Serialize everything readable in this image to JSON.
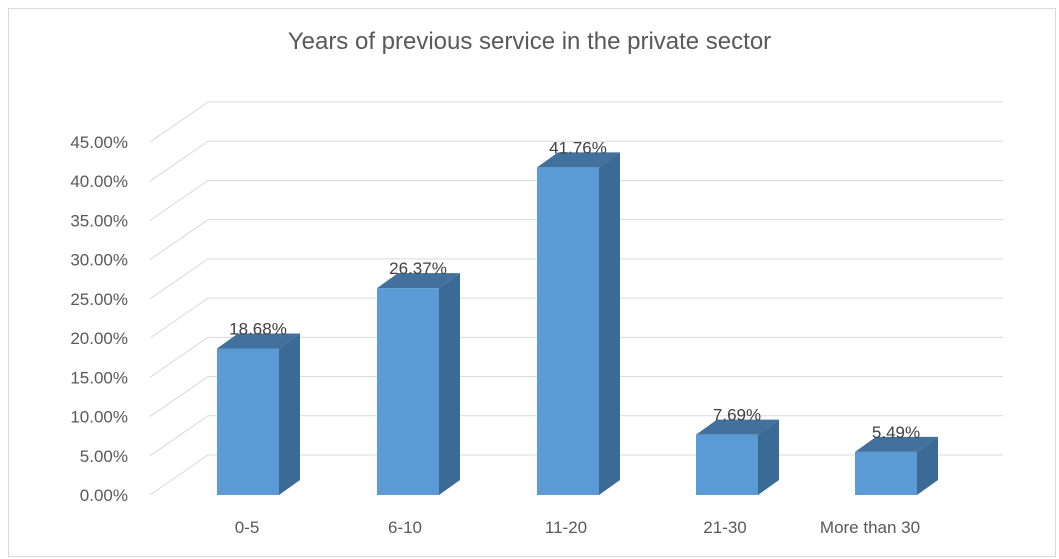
{
  "chart_data": {
    "type": "bar",
    "title": "Years of previous service in the private sector",
    "categories": [
      "0-5",
      "6-10",
      "11-20",
      "21-30",
      "More than 30"
    ],
    "values": [
      18.68,
      26.37,
      41.76,
      7.69,
      5.49
    ],
    "data_labels": [
      "18.68%",
      "26.37%",
      "41.76%",
      "7.69%",
      "5.49%"
    ],
    "y_ticks": [
      "0.00%",
      "5.00%",
      "10.00%",
      "15.00%",
      "20.00%",
      "25.00%",
      "30.00%",
      "35.00%",
      "40.00%",
      "45.00%"
    ],
    "ylim": [
      0,
      45
    ],
    "xlabel": "",
    "ylabel": "",
    "grid": true,
    "style": "3d-column",
    "colors": {
      "front": "#5b9bd5",
      "side": "#3b6a94",
      "top": "#41719c",
      "grid": "#d9d9d9"
    }
  }
}
